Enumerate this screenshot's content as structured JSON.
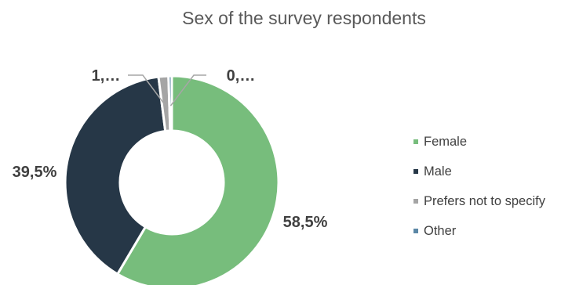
{
  "chart_data": {
    "type": "pie",
    "title": "Sex of the survey respondents",
    "slices": [
      {
        "name": "Female",
        "value": 58.5,
        "label": "58,5%",
        "color": "#77BD7C"
      },
      {
        "name": "Male",
        "value": 39.5,
        "label": "39,5%",
        "color": "#263747"
      },
      {
        "name": "Prefers not to specify",
        "value": 1.5,
        "label": "1,…",
        "color": "#A5A5A5"
      },
      {
        "name": "Other",
        "value": 0.5,
        "label": "0,…",
        "color": "#5B87A6"
      }
    ],
    "donut": true,
    "legend_position": "right"
  }
}
